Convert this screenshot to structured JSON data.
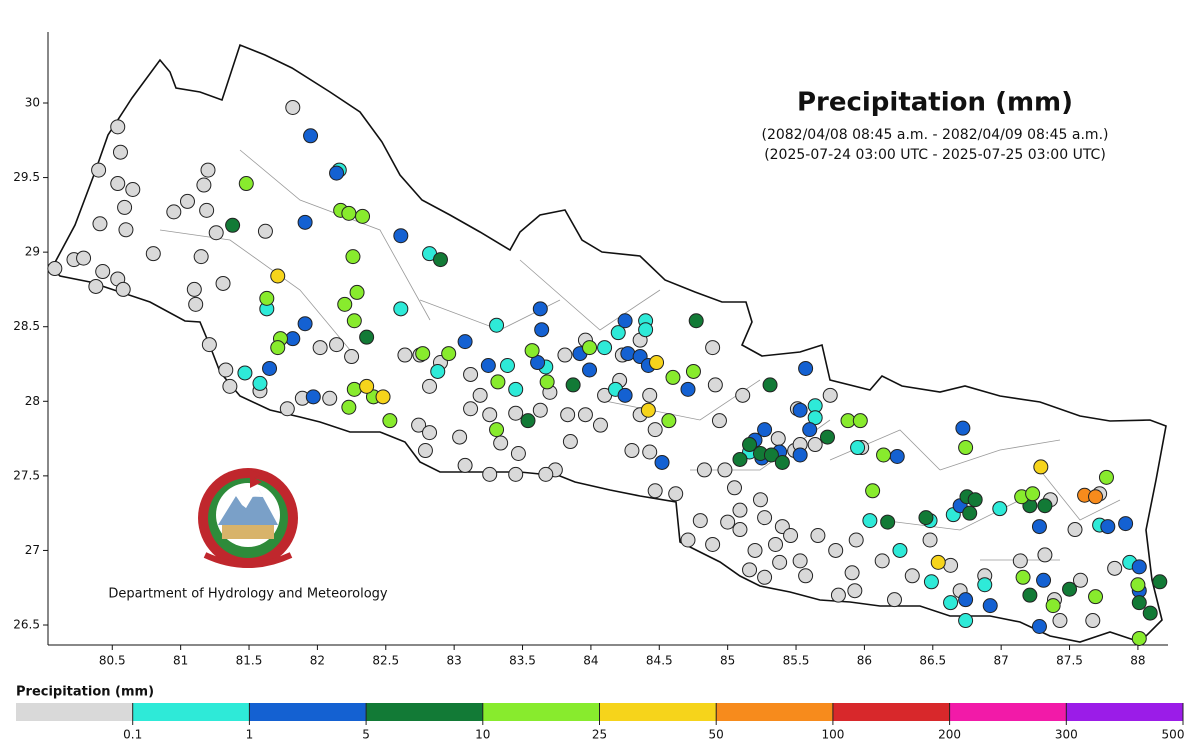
{
  "chart_data": {
    "type": "scatter",
    "title": "Precipitation (mm)",
    "subtitle": [
      "(2082/04/08 08:45 a.m. - 2082/04/09 08:45 a.m.)",
      "(2025-07-24 03:00 UTC - 2025-07-25 03:00 UTC)"
    ],
    "annotation": "Department of Hydrology and Meteorology",
    "xlim": [
      80.03,
      88.22
    ],
    "ylim": [
      26.366,
      30.476
    ],
    "xticks": [
      80.5,
      81,
      81.5,
      82,
      82.5,
      83,
      83.5,
      84,
      84.5,
      85,
      85.5,
      86,
      86.5,
      87,
      87.5,
      88
    ],
    "yticks": [
      26.5,
      27,
      27.5,
      28,
      28.5,
      29,
      29.5,
      30
    ],
    "x": [
      80.54,
      80.56,
      80.4,
      80.54,
      80.65,
      80.59,
      80.6,
      80.41,
      80.08,
      80.22,
      80.29,
      80.43,
      80.38,
      80.54,
      80.58,
      80.8,
      80.95,
      81.05,
      81.17,
      81.2,
      81.19,
      81.26,
      81.62,
      81.82,
      81.15,
      81.1,
      81.11,
      81.31,
      81.21,
      81.33,
      81.36,
      81.58,
      81.78,
      81.89,
      82.09,
      82.02,
      82.14,
      82.25,
      82.64,
      82.75,
      82.9,
      82.82,
      82.74,
      82.82,
      83.04,
      83.12,
      83.19,
      83.12,
      83.26,
      83.34,
      83.45,
      83.47,
      83.63,
      83.7,
      83.83,
      83.96,
      84.07,
      84.21,
      84.1,
      83.81,
      83.96,
      84.23,
      84.36,
      84.43,
      84.36,
      84.47,
      84.3,
      84.43,
      83.85,
      83.74,
      83.67,
      83.45,
      83.26,
      83.08,
      82.79,
      84.47,
      84.62,
      84.83,
      84.98,
      85.05,
      85.09,
      85.24,
      84.8,
      84.71,
      84.89,
      85.0,
      85.09,
      85.27,
      85.4,
      85.35,
      85.38,
      85.2,
      85.16,
      85.27,
      85.53,
      85.57,
      85.46,
      85.66,
      85.79,
      85.94,
      85.91,
      85.81,
      85.93,
      86.22,
      86.13,
      86.35,
      86.63,
      86.7,
      85.11,
      85.37,
      85.49,
      85.53,
      85.51,
      85.64,
      84.91,
      84.94,
      84.89,
      86.88,
      87.14,
      87.32,
      87.54,
      87.58,
      87.83,
      87.39,
      87.43,
      87.67,
      85.75,
      85.98,
      86.48,
      87.36,
      87.72,
      82.16,
      82.82,
      81.63,
      82.61,
      83.31,
      81.47,
      81.58,
      82.88,
      83.45,
      83.39,
      84.1,
      84.18,
      83.67,
      84.2,
      84.4,
      84.4,
      85.64,
      85.64,
      85.95,
      86.04,
      86.26,
      86.49,
      86.63,
      86.74,
      86.88,
      86.99,
      86.65,
      86.48,
      87.72,
      87.94,
      85.16,
      81.95,
      82.14,
      81.91,
      82.61,
      81.91,
      81.82,
      81.65,
      81.97,
      83.08,
      83.25,
      83.63,
      83.64,
      83.61,
      83.92,
      83.99,
      84.25,
      84.27,
      84.36,
      84.42,
      84.25,
      84.71,
      84.52,
      85.2,
      85.27,
      85.57,
      85.53,
      85.6,
      85.53,
      86.24,
      86.72,
      86.7,
      87.28,
      87.31,
      87.28,
      86.92,
      86.74,
      87.91,
      87.78,
      88.01,
      88.01,
      85.25,
      85.38,
      81.38,
      82.9,
      82.36,
      83.54,
      83.87,
      84.77,
      85.31,
      85.09,
      85.16,
      85.24,
      85.32,
      85.4,
      85.73,
      86.17,
      86.45,
      86.75,
      86.81,
      86.77,
      87.21,
      87.32,
      87.21,
      87.5,
      88.01,
      88.16,
      88.09,
      81.48,
      82.17,
      82.23,
      82.33,
      82.26,
      81.63,
      81.73,
      81.71,
      82.27,
      82.2,
      82.29,
      82.77,
      82.96,
      83.57,
      83.68,
      82.27,
      82.23,
      82.41,
      82.53,
      83.32,
      83.31,
      83.99,
      84.6,
      84.75,
      84.57,
      85.88,
      85.97,
      86.14,
      86.06,
      86.74,
      87.15,
      87.23,
      87.16,
      87.38,
      87.69,
      87.77,
      88.01,
      88.0,
      81.71,
      82.36,
      82.48,
      84.48,
      84.42,
      86.54,
      87.29,
      87.61,
      87.69
    ],
    "y": [
      29.84,
      29.67,
      29.55,
      29.46,
      29.42,
      29.3,
      29.15,
      29.19,
      28.89,
      28.95,
      28.96,
      28.87,
      28.77,
      28.82,
      28.75,
      28.99,
      29.27,
      29.34,
      29.45,
      29.55,
      29.28,
      29.13,
      29.14,
      29.97,
      28.97,
      28.75,
      28.65,
      28.79,
      28.38,
      28.21,
      28.1,
      28.07,
      27.95,
      28.02,
      28.02,
      28.36,
      28.38,
      28.3,
      28.31,
      28.31,
      28.26,
      28.1,
      27.84,
      27.79,
      27.76,
      28.18,
      28.04,
      27.95,
      27.91,
      27.72,
      27.92,
      27.65,
      27.94,
      28.06,
      27.91,
      27.91,
      27.84,
      28.14,
      28.04,
      28.31,
      28.41,
      28.31,
      28.41,
      28.04,
      27.91,
      27.81,
      27.67,
      27.66,
      27.73,
      27.54,
      27.51,
      27.51,
      27.51,
      27.57,
      27.67,
      27.4,
      27.38,
      27.54,
      27.54,
      27.42,
      27.27,
      27.34,
      27.2,
      27.07,
      27.04,
      27.19,
      27.14,
      27.22,
      27.16,
      27.04,
      26.92,
      27.0,
      26.87,
      26.82,
      26.93,
      26.83,
      27.1,
      27.1,
      27.0,
      27.07,
      26.85,
      26.7,
      26.73,
      26.67,
      26.93,
      26.83,
      26.9,
      26.73,
      28.04,
      27.75,
      27.67,
      27.71,
      27.95,
      27.71,
      28.11,
      27.87,
      28.36,
      26.83,
      26.93,
      26.97,
      27.14,
      26.8,
      26.88,
      26.67,
      26.53,
      26.53,
      28.04,
      27.69,
      27.07,
      27.34,
      27.38,
      29.55,
      28.99,
      28.62,
      28.62,
      28.51,
      28.19,
      28.12,
      28.2,
      28.08,
      28.24,
      28.36,
      28.08,
      28.23,
      28.46,
      28.54,
      28.48,
      27.97,
      27.89,
      27.69,
      27.2,
      27.0,
      26.79,
      26.65,
      26.53,
      26.77,
      27.28,
      27.24,
      27.2,
      27.17,
      26.92,
      27.66,
      29.78,
      29.53,
      29.2,
      29.11,
      28.52,
      28.42,
      28.22,
      28.03,
      28.4,
      28.24,
      28.62,
      28.48,
      28.26,
      28.32,
      28.21,
      28.54,
      28.32,
      28.3,
      28.24,
      28.04,
      28.08,
      27.59,
      27.74,
      27.81,
      28.22,
      27.94,
      27.81,
      27.64,
      27.63,
      27.82,
      27.3,
      27.16,
      26.8,
      26.49,
      26.63,
      26.67,
      27.18,
      27.16,
      26.89,
      26.73,
      27.62,
      27.66,
      29.18,
      28.95,
      28.43,
      27.87,
      28.11,
      28.54,
      28.11,
      27.61,
      27.71,
      27.65,
      27.64,
      27.59,
      27.76,
      27.19,
      27.22,
      27.36,
      27.34,
      27.25,
      27.3,
      27.3,
      26.7,
      26.74,
      26.65,
      26.79,
      26.58,
      29.46,
      29.28,
      29.26,
      29.24,
      28.97,
      28.69,
      28.42,
      28.36,
      28.54,
      28.65,
      28.73,
      28.32,
      28.32,
      28.34,
      28.13,
      28.08,
      27.96,
      28.03,
      27.87,
      28.13,
      27.81,
      28.36,
      28.16,
      28.2,
      27.87,
      27.87,
      27.87,
      27.64,
      27.4,
      27.69,
      27.36,
      27.38,
      26.82,
      26.63,
      26.69,
      27.49,
      26.41,
      26.77,
      28.84,
      28.1,
      28.03,
      28.26,
      27.94,
      26.92,
      27.56,
      27.37,
      27.36
    ],
    "values": [
      0,
      0,
      0,
      0,
      0,
      0,
      0,
      0,
      0,
      0,
      0,
      0,
      0,
      0,
      0,
      0,
      0,
      0,
      0,
      0,
      0,
      0,
      0,
      0,
      0,
      0,
      0,
      0,
      0,
      0,
      0,
      0,
      0,
      0,
      0,
      0,
      0,
      0,
      0,
      0,
      0,
      0,
      0,
      0,
      0,
      0,
      0,
      0,
      0,
      0,
      0,
      0,
      0,
      0,
      0,
      0,
      0,
      0,
      0,
      0,
      0,
      0,
      0,
      0,
      0,
      0,
      0,
      0,
      0,
      0,
      0,
      0,
      0,
      0,
      0,
      0,
      0,
      0,
      0,
      0,
      0,
      0,
      0,
      0,
      0,
      0,
      0,
      0,
      0,
      0,
      0,
      0,
      0,
      0,
      0,
      0,
      0,
      0,
      0,
      0,
      0,
      0,
      0,
      0,
      0,
      0,
      0,
      0,
      0,
      0,
      0,
      0,
      0,
      0,
      0,
      0,
      0,
      0,
      0,
      0,
      0,
      0,
      0,
      0,
      0,
      0,
      0,
      0,
      0,
      0,
      0,
      0.5,
      0.5,
      0.5,
      0.5,
      0.5,
      0.5,
      0.5,
      0.5,
      0.5,
      0.5,
      0.5,
      0.5,
      0.5,
      0.5,
      0.5,
      0.5,
      0.5,
      0.5,
      0.5,
      0.5,
      0.5,
      0.5,
      0.5,
      0.5,
      0.5,
      0.5,
      0.5,
      0.5,
      0.5,
      0.5,
      0.5,
      3,
      3,
      3,
      3,
      3,
      3,
      3,
      3,
      3,
      3,
      3,
      3,
      3,
      3,
      3,
      3,
      3,
      3,
      3,
      3,
      3,
      3,
      3,
      3,
      3,
      3,
      3,
      3,
      3,
      3,
      3,
      3,
      3,
      3,
      3,
      3,
      3,
      3,
      3,
      3,
      3,
      3,
      7,
      7,
      7,
      7,
      7,
      7,
      7,
      7,
      7,
      7,
      7,
      7,
      7,
      7,
      7,
      7,
      7,
      7,
      7,
      7,
      7,
      7,
      7,
      7,
      7,
      15,
      15,
      15,
      15,
      15,
      15,
      15,
      15,
      15,
      15,
      15,
      15,
      15,
      15,
      15,
      15,
      15,
      15,
      15,
      15,
      15,
      15,
      15,
      15,
      15,
      15,
      15,
      15,
      15,
      15,
      15,
      15,
      15,
      15,
      15,
      15,
      15,
      15,
      35,
      35,
      35,
      35,
      35,
      35,
      35,
      70,
      70
    ],
    "colorbar": {
      "title": "Precipitation (mm)",
      "bounds": [
        0.1,
        1,
        5,
        10,
        25,
        50,
        100,
        200,
        300,
        500
      ],
      "colors": [
        "#d9d9d9",
        "#2eead8",
        "#1461d2",
        "#127a36",
        "#88eb2d",
        "#f6d41b",
        "#f78b1c",
        "#d8282b",
        "#f21aa8",
        "#9b1ce8"
      ]
    }
  }
}
